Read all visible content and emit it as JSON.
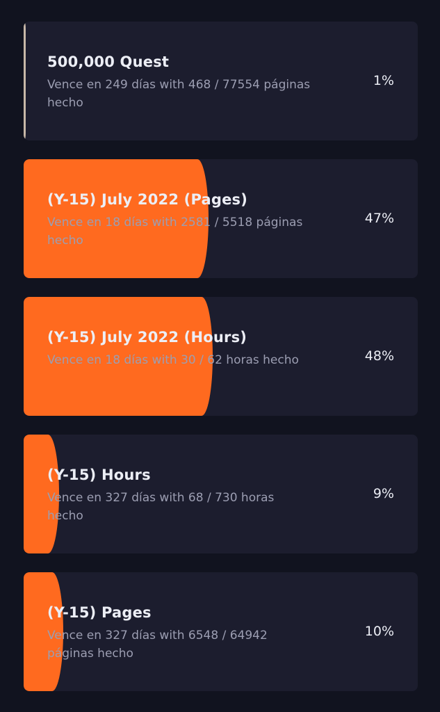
{
  "goals": [
    {
      "title": "500,000 Quest",
      "subtitle": "Vence en 249 días with 468 / 77554 páginas hecho",
      "percent_label": "1%",
      "progress": 0.01
    },
    {
      "title": "(Y-15) July 2022 (Pages)",
      "subtitle": "Vence en 18 días with 2581 / 5518 páginas hecho",
      "percent_label": "47%",
      "progress": 0.47
    },
    {
      "title": "(Y-15) July 2022 (Hours)",
      "subtitle": "Vence en 18 días with 30 / 62 horas hecho",
      "percent_label": "48%",
      "progress": 0.48
    },
    {
      "title": "(Y-15) Hours",
      "subtitle": "Vence en 327 días with 68 / 730 horas hecho",
      "percent_label": "9%",
      "progress": 0.09
    },
    {
      "title": "(Y-15) Pages",
      "subtitle": "Vence en 327 días with 6548 / 64942 páginas hecho",
      "percent_label": "10%",
      "progress": 0.1
    }
  ],
  "colors": {
    "background": "#11131f",
    "card": "#1c1d2e",
    "progress_fill": "#ff6a1f",
    "first_fill": "#c8b8a8"
  }
}
